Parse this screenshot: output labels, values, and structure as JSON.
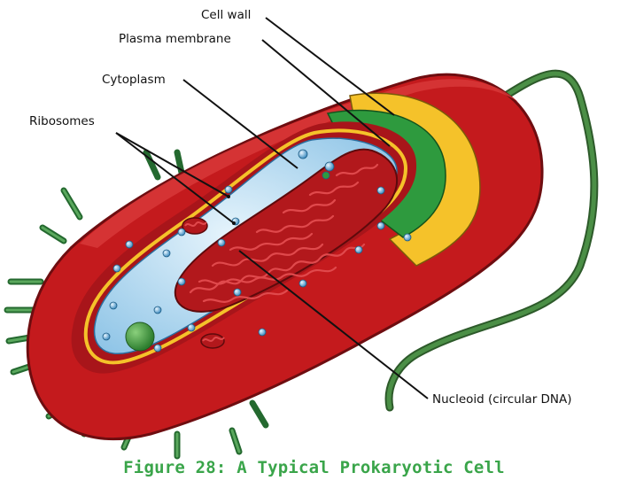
{
  "labels": {
    "cell_wall": "Cell wall",
    "plasma_membrane": "Plasma membrane",
    "cytoplasm": "Cytoplasm",
    "ribosomes": "Ribosomes",
    "nucleoid": "Nucleoid (circular DNA)"
  },
  "caption": "Figure 28: A Typical Prokaryotic Cell",
  "colors": {
    "capsule": "#c41a1d",
    "capsule_dark": "#8e1114",
    "cell_wall": "#f5c22a",
    "plasma_membrane": "#2e9a3e",
    "cytoplasm": "#a9d4ee",
    "nucleoid": "#b2181c",
    "pili": "#2f8a3c",
    "flagellum": "#3e7a3b",
    "caption": "#3aa54a"
  }
}
